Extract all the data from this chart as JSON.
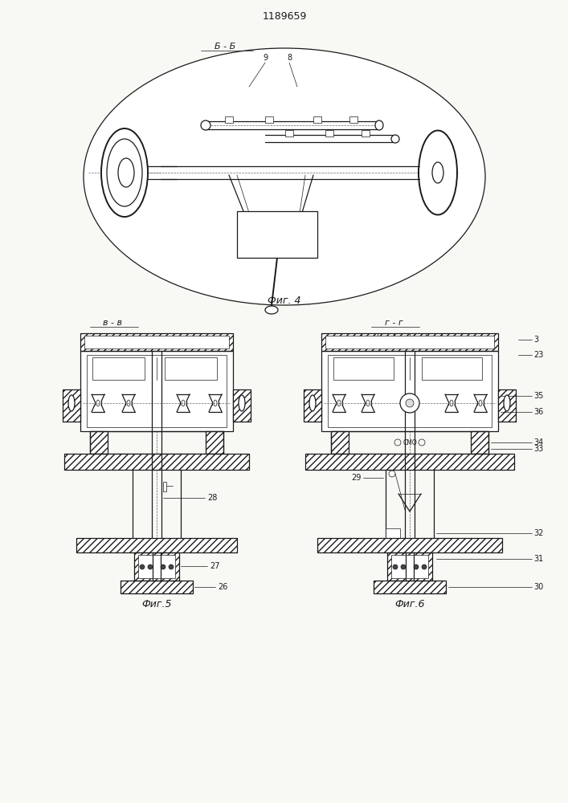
{
  "title": "1189659",
  "bg_color": "#f8f8f5",
  "line_color": "#1a1a1a",
  "fig4_label": "Фиг. 4",
  "fig5_label": "Фиг.5",
  "fig6_label": "Фиг.6",
  "section_bb": "Б - Б",
  "section_vv": "в - в",
  "section_gg": "г - г",
  "label_9": "9",
  "label_8": "8",
  "labels_fig5": [
    "28",
    "27",
    "26"
  ],
  "labels_fig6": [
    "3",
    "23",
    "35",
    "36",
    "34",
    "33",
    "29",
    "32",
    "31",
    "30"
  ]
}
